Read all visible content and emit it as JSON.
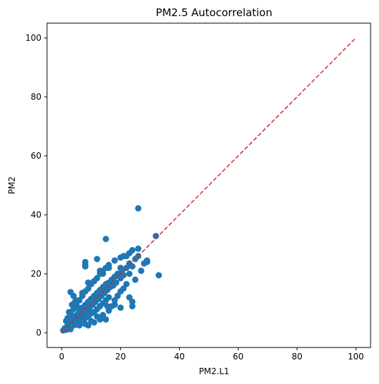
{
  "chart_data": {
    "type": "scatter",
    "title": "PM2.5 Autocorrelation",
    "xlabel": "PM2.L1",
    "ylabel": "PM2",
    "xlim": [
      -5,
      105
    ],
    "ylim": [
      -5,
      105
    ],
    "xticks": [
      0,
      20,
      40,
      60,
      80,
      100
    ],
    "yticks": [
      0,
      20,
      40,
      60,
      80,
      100
    ],
    "grid": false,
    "colors": {
      "points": "#1f77b4",
      "reference_line": "#d62728"
    },
    "reference_line": {
      "style": "dashed",
      "from": [
        0,
        0
      ],
      "to": [
        100,
        100
      ]
    },
    "series": [
      {
        "points": [
          [
            0.5,
            0.8
          ],
          [
            1.0,
            1.5
          ],
          [
            1.5,
            1.0
          ],
          [
            2.0,
            2.5
          ],
          [
            2.5,
            1.8
          ],
          [
            3.0,
            3.2
          ],
          [
            3.0,
            1.2
          ],
          [
            3.5,
            4.0
          ],
          [
            4.0,
            2.5
          ],
          [
            4.0,
            5.5
          ],
          [
            4.5,
            3.5
          ],
          [
            5.0,
            6.0
          ],
          [
            5.0,
            2.8
          ],
          [
            5.5,
            4.5
          ],
          [
            6.0,
            7.5
          ],
          [
            6.0,
            3.5
          ],
          [
            6.5,
            5.5
          ],
          [
            7.0,
            8.5
          ],
          [
            7.0,
            4.0
          ],
          [
            7.5,
            6.5
          ],
          [
            8.0,
            9.5
          ],
          [
            8.0,
            5.0
          ],
          [
            8.5,
            7.5
          ],
          [
            9.0,
            10.5
          ],
          [
            9.0,
            5.5
          ],
          [
            9.5,
            8.5
          ],
          [
            10.0,
            11.5
          ],
          [
            10.0,
            6.5
          ],
          [
            10.5,
            9.5
          ],
          [
            11.0,
            12.5
          ],
          [
            11.0,
            7.0
          ],
          [
            11.5,
            10.5
          ],
          [
            12.0,
            13.5
          ],
          [
            12.0,
            8.0
          ],
          [
            12.5,
            11.5
          ],
          [
            13.0,
            14.5
          ],
          [
            13.0,
            9.0
          ],
          [
            13.5,
            12.5
          ],
          [
            14.0,
            15.5
          ],
          [
            14.0,
            10.0
          ],
          [
            14.5,
            13.5
          ],
          [
            15.0,
            16.5
          ],
          [
            15.0,
            11.0
          ],
          [
            15.5,
            14.5
          ],
          [
            16.0,
            17.0
          ],
          [
            16.0,
            12.0
          ],
          [
            16.5,
            15.5
          ],
          [
            17.0,
            18.0
          ],
          [
            17.5,
            16.0
          ],
          [
            18.0,
            19.0
          ],
          [
            18.5,
            17.0
          ],
          [
            19.0,
            20.0
          ],
          [
            20.0,
            18.5
          ],
          [
            20.5,
            21.0
          ],
          [
            21.0,
            19.5
          ],
          [
            22.0,
            22.0
          ],
          [
            23.0,
            23.5
          ],
          [
            24.0,
            22.5
          ],
          [
            25.0,
            25.0
          ],
          [
            26.0,
            26.0
          ],
          [
            3.0,
            6.5
          ],
          [
            4.0,
            8.0
          ],
          [
            5.0,
            9.5
          ],
          [
            6.0,
            11.0
          ],
          [
            7.0,
            12.5
          ],
          [
            8.0,
            14.0
          ],
          [
            9.0,
            15.0
          ],
          [
            10.0,
            16.5
          ],
          [
            11.0,
            17.5
          ],
          [
            12.0,
            18.5
          ],
          [
            13.0,
            20.0
          ],
          [
            14.0,
            21.0
          ],
          [
            15.0,
            22.0
          ],
          [
            16.0,
            23.0
          ],
          [
            18.0,
            24.5
          ],
          [
            20.0,
            25.5
          ],
          [
            21.0,
            26.0
          ],
          [
            23.0,
            27.0
          ],
          [
            24.0,
            28.0
          ],
          [
            26.0,
            28.5
          ],
          [
            6.0,
            2.5
          ],
          [
            8.0,
            3.0
          ],
          [
            10.0,
            4.0
          ],
          [
            12.0,
            5.5
          ],
          [
            14.0,
            6.0
          ],
          [
            15.0,
            4.5
          ],
          [
            16.0,
            7.5
          ],
          [
            17.0,
            9.0
          ],
          [
            18.0,
            11.0
          ],
          [
            19.0,
            12.5
          ],
          [
            20.0,
            14.0
          ],
          [
            21.0,
            15.0
          ],
          [
            22.0,
            16.5
          ],
          [
            23.0,
            12.0
          ],
          [
            24.0,
            10.5
          ],
          [
            24.0,
            9.0
          ],
          [
            25.0,
            18.0
          ],
          [
            27.0,
            21.0
          ],
          [
            28.0,
            23.5
          ],
          [
            29.0,
            24.5
          ],
          [
            29.0,
            24.0
          ],
          [
            3.0,
            13.8
          ],
          [
            4.0,
            12.5
          ],
          [
            5.0,
            11.0
          ],
          [
            7.0,
            13.5
          ],
          [
            9.0,
            17.0
          ],
          [
            11.0,
            17.5
          ],
          [
            13.0,
            21.0
          ],
          [
            14.0,
            20.0
          ],
          [
            16.0,
            22.0
          ],
          [
            18.0,
            24.5
          ],
          [
            20.0,
            22.0
          ],
          [
            22.0,
            26.0
          ],
          [
            23.0,
            20.0
          ],
          [
            8.0,
            24.0
          ],
          [
            8.0,
            23.0
          ],
          [
            8.0,
            22.5
          ],
          [
            12.0,
            25.0
          ],
          [
            15.0,
            31.8
          ],
          [
            26.0,
            42.2
          ],
          [
            32.0,
            32.8
          ],
          [
            33.0,
            19.5
          ],
          [
            15.5,
            9.0
          ],
          [
            18.0,
            9.5
          ],
          [
            20.0,
            8.5
          ],
          [
            9.0,
            2.5
          ],
          [
            11.0,
            3.5
          ],
          [
            13.0,
            4.5
          ],
          [
            2.0,
            5.0
          ],
          [
            2.5,
            7.0
          ],
          [
            1.5,
            4.0
          ],
          [
            3.5,
            9.5
          ],
          [
            4.5,
            10.5
          ],
          [
            5.5,
            8.5
          ]
        ]
      }
    ]
  }
}
